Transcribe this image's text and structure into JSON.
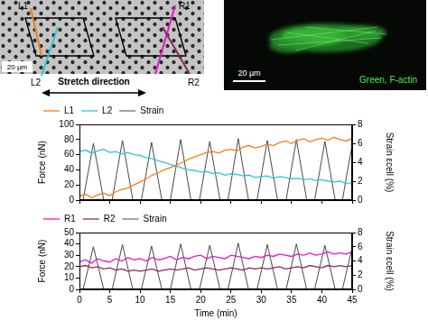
{
  "panels": {
    "micrograph": {
      "labels": [
        "L1",
        "L2",
        "R1",
        "R2"
      ],
      "scale_bar": "20 µm",
      "caption": "Stretch direction"
    },
    "fluorescence": {
      "scale_bar": "20 µm",
      "caption": "Green, F-actin"
    }
  },
  "chart_data": [
    {
      "type": "line",
      "y_label": "Force (nN)",
      "y2_label": "Strain εcell (%)",
      "x": [
        0,
        1,
        2,
        3,
        4,
        5,
        6,
        7,
        8,
        9,
        10,
        11,
        12,
        13,
        14,
        15,
        16,
        17,
        18,
        19,
        20,
        21,
        22,
        23,
        24,
        25,
        26,
        27,
        28,
        29,
        30,
        31,
        32,
        33,
        34,
        35,
        36,
        37,
        38,
        39,
        40,
        41,
        42,
        43,
        44,
        45
      ],
      "xlim": [
        0,
        45
      ],
      "xticks": [
        0,
        5,
        10,
        15,
        20,
        25,
        30,
        35,
        40,
        45
      ],
      "ylim": [
        0,
        100
      ],
      "yticks": [
        0,
        20,
        40,
        60,
        80,
        100
      ],
      "y2lim": [
        0,
        8
      ],
      "y2ticks": [
        0,
        2,
        4,
        6,
        8
      ],
      "grid": false,
      "legend": "upper left",
      "tick_labels": "y",
      "series": [
        {
          "name": "L1",
          "color": "#f0801e",
          "values": [
            5,
            8,
            3,
            7,
            9,
            6,
            11,
            14,
            16,
            20,
            24,
            28,
            33,
            36,
            40,
            43,
            46,
            50,
            54,
            57,
            60,
            63,
            64,
            62,
            66,
            67,
            65,
            70,
            72,
            69,
            71,
            74,
            72,
            76,
            78,
            75,
            79,
            81,
            77,
            80,
            82,
            79,
            83,
            80,
            78,
            81
          ]
        },
        {
          "name": "L2",
          "color": "#2cc6d4",
          "values": [
            64,
            66,
            62,
            65,
            67,
            63,
            64,
            61,
            63,
            60,
            59,
            56,
            55,
            52,
            50,
            47,
            45,
            42,
            40,
            39,
            37,
            38,
            35,
            36,
            33,
            35,
            34,
            32,
            33,
            30,
            31,
            32,
            29,
            31,
            30,
            28,
            29,
            27,
            28,
            26,
            27,
            25,
            24,
            25,
            22,
            23
          ]
        },
        {
          "name": "Strain",
          "color": "#333333",
          "axis": "y2",
          "x": [
            0,
            0.6,
            1.45,
            2.3,
            3.15,
            4.0,
            5.4,
            6.25,
            7.1,
            7.95,
            8.8,
            10.2,
            11.05,
            11.9,
            12.75,
            13.6,
            15.0,
            15.85,
            16.7,
            17.55,
            18.4,
            19.8,
            20.65,
            21.5,
            22.35,
            23.2,
            24.5,
            25.35,
            26.2,
            27.05,
            27.9,
            29.3,
            30.15,
            31.0,
            31.85,
            32.7,
            34.1,
            34.95,
            35.8,
            36.65,
            37.5,
            38.8,
            39.65,
            40.5,
            41.35,
            42.2,
            43.4,
            44.2,
            45
          ],
          "values": [
            0,
            0,
            3.0,
            6.0,
            3.0,
            0,
            0,
            3.2,
            6.3,
            3.2,
            0,
            0,
            3.0,
            6.1,
            3.0,
            0,
            0,
            3.2,
            6.4,
            3.2,
            0,
            0,
            3.1,
            6.2,
            3.1,
            0,
            0,
            3.2,
            6.5,
            3.2,
            0,
            0,
            3.1,
            6.3,
            3.1,
            0,
            0,
            3.2,
            6.4,
            3.2,
            0,
            0,
            3.1,
            6.2,
            3.1,
            0,
            0,
            3.0,
            5.8
          ]
        }
      ]
    },
    {
      "type": "line",
      "x_label": "Time (min)",
      "y_label": "Force (nN)",
      "y2_label": "Strain εcell (%)",
      "x": [
        0,
        1,
        2,
        3,
        4,
        5,
        6,
        7,
        8,
        9,
        10,
        11,
        12,
        13,
        14,
        15,
        16,
        17,
        18,
        19,
        20,
        21,
        22,
        23,
        24,
        25,
        26,
        27,
        28,
        29,
        30,
        31,
        32,
        33,
        34,
        35,
        36,
        37,
        38,
        39,
        40,
        41,
        42,
        43,
        44,
        45
      ],
      "xlim": [
        0,
        45
      ],
      "xticks": [
        0,
        5,
        10,
        15,
        20,
        25,
        30,
        35,
        40,
        45
      ],
      "ylim": [
        0,
        50
      ],
      "yticks": [
        0,
        10,
        20,
        30,
        40,
        50
      ],
      "y2lim": [
        0,
        8
      ],
      "y2ticks": [
        0,
        2,
        4,
        6,
        8
      ],
      "grid": false,
      "legend": "upper left",
      "series": [
        {
          "name": "R1",
          "color": "#e21ac6",
          "values": [
            24,
            26,
            23,
            27,
            25,
            24,
            27,
            25,
            28,
            26,
            27,
            25,
            28,
            26,
            27,
            29,
            26,
            28,
            27,
            29,
            30,
            27,
            29,
            28,
            27,
            30,
            29,
            28,
            27,
            29,
            28,
            30,
            29,
            31,
            30,
            29,
            31,
            30,
            32,
            30,
            31,
            33,
            31,
            32,
            31,
            33
          ]
        },
        {
          "name": "R2",
          "color": "#8a2a5c",
          "values": [
            20,
            21,
            19,
            20,
            18,
            19,
            17,
            18,
            16,
            17,
            16,
            17,
            18,
            16,
            17,
            18,
            17,
            18,
            19,
            17,
            18,
            19,
            18,
            17,
            18,
            19,
            18,
            17,
            19,
            18,
            19,
            18,
            19,
            20,
            18,
            19,
            20,
            19,
            21,
            20,
            19,
            21,
            20,
            21,
            20,
            21
          ]
        },
        {
          "name": "Strain",
          "color": "#333333",
          "axis": "y2",
          "x": [
            0,
            0.6,
            1.45,
            2.3,
            3.15,
            4.0,
            5.4,
            6.25,
            7.1,
            7.95,
            8.8,
            10.2,
            11.05,
            11.9,
            12.75,
            13.6,
            15.0,
            15.85,
            16.7,
            17.55,
            18.4,
            19.8,
            20.65,
            21.5,
            22.35,
            23.2,
            24.5,
            25.35,
            26.2,
            27.05,
            27.9,
            29.3,
            30.15,
            31.0,
            31.85,
            32.7,
            34.1,
            34.95,
            35.8,
            36.65,
            37.5,
            38.8,
            39.65,
            40.5,
            41.35,
            42.2,
            43.4,
            44.2,
            45
          ],
          "values": [
            0,
            0,
            3.0,
            6.0,
            3.0,
            0,
            0,
            3.2,
            6.3,
            3.2,
            0,
            0,
            3.0,
            6.1,
            3.0,
            0,
            0,
            3.2,
            6.4,
            3.2,
            0,
            0,
            3.1,
            6.2,
            3.1,
            0,
            0,
            3.2,
            6.5,
            3.2,
            0,
            0,
            3.1,
            6.3,
            3.1,
            0,
            0,
            3.2,
            6.4,
            3.2,
            0,
            0,
            3.1,
            6.2,
            3.1,
            0,
            0,
            3.0,
            5.8
          ]
        }
      ]
    }
  ]
}
